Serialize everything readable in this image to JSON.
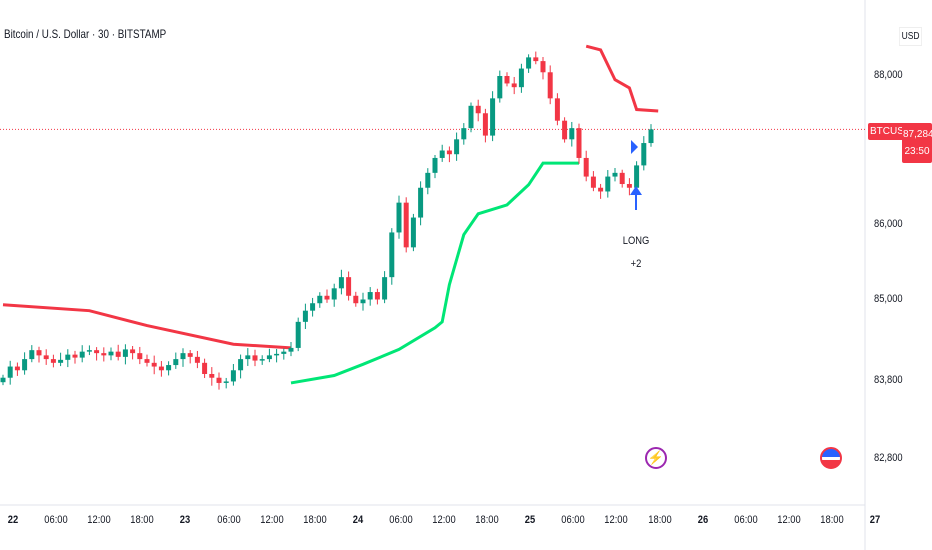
{
  "header": {
    "title": "Bitcoin / U.S. Dollar · 30 · BITSTAMP"
  },
  "price_axis": {
    "currency": "USD",
    "labels": [
      "88,000",
      "86,000",
      "85,000",
      "83,800",
      "82,800"
    ]
  },
  "current": {
    "symbol": "BTCUSD",
    "price": "87,284",
    "countdown": "23:50"
  },
  "signal": {
    "label": "LONG",
    "value": "+2"
  },
  "events": {
    "icon1": "lightning-icon",
    "icon2": "us-flag-icon"
  },
  "colors": {
    "up": "#089981",
    "down": "#f23645",
    "resistance": "#f23645",
    "support": "#00e676",
    "signal": "#2962ff"
  },
  "chart_data": {
    "type": "candlestick",
    "symbol": "BTCUSD",
    "interval": "30",
    "ylim": [
      82600,
      88700
    ],
    "x_tick_labels": [
      "22",
      "06:00",
      "12:00",
      "18:00",
      "23",
      "06:00",
      "12:00",
      "18:00",
      "24",
      "06:00",
      "12:00",
      "18:00",
      "25",
      "06:00",
      "12:00",
      "18:00",
      "26",
      "06:00",
      "12:00",
      "18:00",
      "27"
    ],
    "closes": [
      83950,
      84100,
      84050,
      84200,
      84320,
      84250,
      84200,
      84150,
      84190,
      84260,
      84220,
      84300,
      84320,
      84280,
      84250,
      84300,
      84230,
      84330,
      84280,
      84200,
      84150,
      84100,
      84050,
      84120,
      84200,
      84280,
      84230,
      84150,
      84000,
      83950,
      83880,
      83900,
      84050,
      84200,
      84250,
      84180,
      84200,
      84250,
      84270,
      84300,
      84350,
      84700,
      84850,
      84950,
      85050,
      85000,
      85150,
      85300,
      85050,
      84950,
      85000,
      85100,
      85000,
      85300,
      85900,
      86300,
      85700,
      86100,
      86500,
      86700,
      86900,
      87000,
      86950,
      87150,
      87300,
      87600,
      87500,
      87200,
      87700,
      88000,
      87900,
      87850,
      88100,
      88250,
      88200,
      88050,
      87700,
      87400,
      87150,
      87300,
      86900,
      86650,
      86500,
      86450,
      86650,
      86700,
      86550,
      86500,
      86800,
      87100,
      87284
    ],
    "resistance_lines": [
      [
        [
          0,
          84930
        ],
        [
          12,
          84850
        ],
        [
          20,
          84650
        ],
        [
          32,
          84400
        ],
        [
          40,
          84350
        ]
      ],
      [
        [
          81,
          88400
        ],
        [
          83,
          88350
        ],
        [
          85,
          87950
        ],
        [
          87,
          87840
        ],
        [
          88,
          87550
        ],
        [
          91,
          87530
        ]
      ]
    ],
    "support_line": [
      [
        40,
        83880
      ],
      [
        46,
        83980
      ],
      [
        50,
        84130
      ],
      [
        55,
        84330
      ],
      [
        60,
        84620
      ],
      [
        61,
        84700
      ],
      [
        62,
        85200
      ],
      [
        64,
        85870
      ],
      [
        66,
        86150
      ],
      [
        70,
        86270
      ],
      [
        73,
        86540
      ],
      [
        75,
        86830
      ],
      [
        80,
        86830
      ]
    ],
    "last_price": 87284
  }
}
